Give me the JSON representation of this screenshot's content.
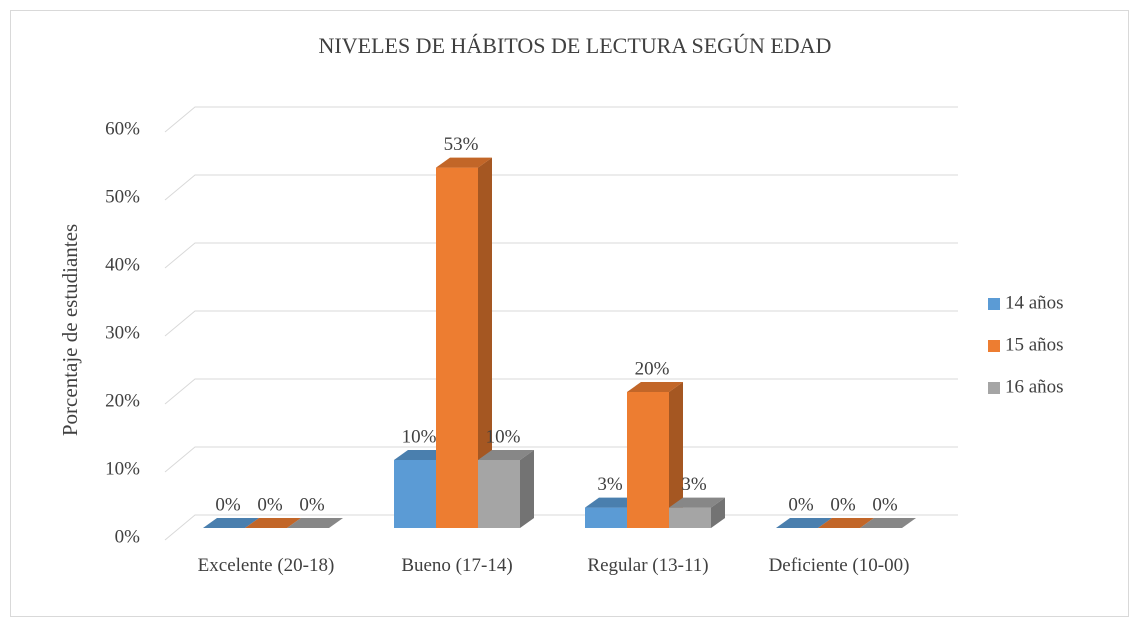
{
  "chart_data": {
    "type": "bar3d",
    "title": "NIVELES DE HÁBITOS DE LECTURA SEGÚN EDAD",
    "y_label": "Porcentaje de estudiantes",
    "categories": [
      "Excelente (20-18)",
      "Bueno (17-14)",
      "Regular (13-11)",
      "Deficiente (10-00)"
    ],
    "series": [
      {
        "name": "14 años",
        "color": "#5b9bd5",
        "values": [
          0,
          10,
          3,
          0
        ],
        "value_labels": [
          "0%",
          "10%",
          "3%",
          "0%"
        ]
      },
      {
        "name": "15 años",
        "color": "#ed7d31",
        "values": [
          0,
          53,
          20,
          0
        ],
        "value_labels": [
          "0%",
          "53%",
          "20%",
          "0%"
        ]
      },
      {
        "name": "16 años",
        "color": "#a5a5a5",
        "values": [
          0,
          10,
          3,
          0
        ],
        "value_labels": [
          "0%",
          "10%",
          "3%",
          "0%"
        ]
      }
    ],
    "ylim": [
      0,
      60
    ],
    "yticks": [
      {
        "value": 0,
        "label": "0%"
      },
      {
        "value": 10,
        "label": "10%"
      },
      {
        "value": 20,
        "label": "20%"
      },
      {
        "value": 30,
        "label": "30%"
      },
      {
        "value": 40,
        "label": "40%"
      },
      {
        "value": 50,
        "label": "50%"
      },
      {
        "value": 60,
        "label": "60%"
      }
    ],
    "grid": true,
    "legend": "right"
  }
}
